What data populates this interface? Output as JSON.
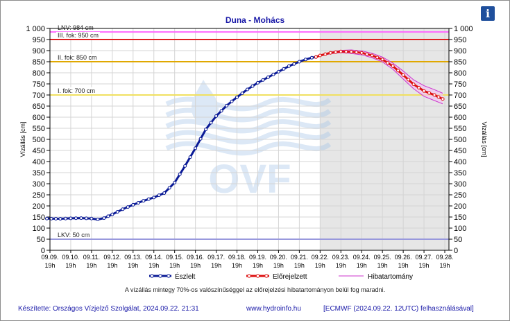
{
  "header": {
    "info_label": "i"
  },
  "chart_data": {
    "type": "line",
    "title": "Duna - Mohács",
    "ylabel": "Vízállás [cm]",
    "ylabel_right": "Vízállás [cm]",
    "xlabel": "",
    "ylim": [
      0,
      1000
    ],
    "yticks": [
      "0",
      "50",
      "100",
      "150",
      "200",
      "250",
      "300",
      "350",
      "400",
      "450",
      "500",
      "550",
      "600",
      "650",
      "700",
      "750",
      "800",
      "850",
      "900",
      "950",
      "1 000"
    ],
    "xlim": [
      0,
      19.2
    ],
    "forecast_start": 13,
    "x_labels": [
      {
        "day": "09.09.",
        "time": "19h",
        "x": 0
      },
      {
        "day": "09.10.",
        "time": "19h",
        "x": 1
      },
      {
        "day": "09.11.",
        "time": "19h",
        "x": 2
      },
      {
        "day": "09.12.",
        "time": "19h",
        "x": 3
      },
      {
        "day": "09.13.",
        "time": "19h",
        "x": 4
      },
      {
        "day": "09.14.",
        "time": "19h",
        "x": 5
      },
      {
        "day": "09.15.",
        "time": "19h",
        "x": 6
      },
      {
        "day": "09.16.",
        "time": "19h",
        "x": 7
      },
      {
        "day": "09.17.",
        "time": "19h",
        "x": 8
      },
      {
        "day": "09.18.",
        "time": "19h",
        "x": 9
      },
      {
        "day": "09.19.",
        "time": "19h",
        "x": 10
      },
      {
        "day": "09.20.",
        "time": "19h",
        "x": 11
      },
      {
        "day": "09.21.",
        "time": "19h",
        "x": 12
      },
      {
        "day": "09.22.",
        "time": "19h",
        "x": 13
      },
      {
        "day": "09.23.",
        "time": "19h",
        "x": 14
      },
      {
        "day": "09.24.",
        "time": "19h",
        "x": 15
      },
      {
        "day": "09.25.",
        "time": "19h",
        "x": 16
      },
      {
        "day": "09.26.",
        "time": "19h",
        "x": 17
      },
      {
        "day": "09.27.",
        "time": "19h",
        "x": 18
      },
      {
        "day": "09.28.",
        "time": "19h",
        "x": 19
      }
    ],
    "thresholds": [
      {
        "label": "LNV: 984 cm",
        "value": 984,
        "color": "#ff66ff"
      },
      {
        "label": "III. fok: 950 cm",
        "value": 950,
        "color": "#dd2020"
      },
      {
        "label": "II. fok: 850 cm",
        "value": 850,
        "color": "#e0a800"
      },
      {
        "label": "I. fok: 700 cm",
        "value": 700,
        "color": "#f0e060"
      },
      {
        "label": "LKV: 50 cm",
        "value": 50,
        "color": "#9999dd"
      }
    ],
    "series": [
      {
        "name": "Észlelt",
        "color": "#0a1a96",
        "points": [
          [
            -0.15,
            143
          ],
          [
            0.5,
            142
          ],
          [
            1,
            144
          ],
          [
            1.5,
            145
          ],
          [
            2,
            143
          ],
          [
            2.3,
            139
          ],
          [
            2.6,
            145
          ],
          [
            3,
            162
          ],
          [
            3.5,
            185
          ],
          [
            4,
            205
          ],
          [
            4.5,
            223
          ],
          [
            5,
            238
          ],
          [
            5.5,
            258
          ],
          [
            6,
            305
          ],
          [
            6.5,
            380
          ],
          [
            7,
            460
          ],
          [
            7.5,
            545
          ],
          [
            8,
            605
          ],
          [
            8.5,
            652
          ],
          [
            9,
            690
          ],
          [
            9.5,
            725
          ],
          [
            10,
            755
          ],
          [
            10.5,
            780
          ],
          [
            11,
            805
          ],
          [
            11.5,
            830
          ],
          [
            12,
            850
          ],
          [
            12.3,
            860
          ],
          [
            12.6,
            868
          ],
          [
            12.8,
            871
          ]
        ]
      },
      {
        "name": "Előrejelzett",
        "color": "#dd1010",
        "points": [
          [
            12.8,
            871
          ],
          [
            13,
            878
          ],
          [
            13.5,
            890
          ],
          [
            14,
            896
          ],
          [
            14.5,
            895
          ],
          [
            15,
            890
          ],
          [
            15.5,
            878
          ],
          [
            16,
            860
          ],
          [
            16.5,
            830
          ],
          [
            17,
            790
          ],
          [
            17.5,
            748
          ],
          [
            18,
            718
          ],
          [
            18.5,
            700
          ],
          [
            18.9,
            682
          ]
        ]
      },
      {
        "name": "Hibatartomány",
        "color": "#cc33cc",
        "upper": [
          [
            12.8,
            873
          ],
          [
            13,
            880
          ],
          [
            13.5,
            893
          ],
          [
            14,
            901
          ],
          [
            14.5,
            903
          ],
          [
            15,
            899
          ],
          [
            15.5,
            888
          ],
          [
            16,
            871
          ],
          [
            16.5,
            844
          ],
          [
            17,
            808
          ],
          [
            17.5,
            768
          ],
          [
            18,
            742
          ],
          [
            18.5,
            724
          ],
          [
            18.9,
            708
          ]
        ],
        "lower": [
          [
            12.8,
            869
          ],
          [
            13,
            875
          ],
          [
            13.5,
            886
          ],
          [
            14,
            891
          ],
          [
            14.5,
            887
          ],
          [
            15,
            881
          ],
          [
            15.5,
            868
          ],
          [
            16,
            849
          ],
          [
            16.5,
            816
          ],
          [
            17,
            772
          ],
          [
            17.5,
            728
          ],
          [
            18,
            694
          ],
          [
            18.5,
            675
          ],
          [
            18.9,
            660
          ]
        ]
      }
    ],
    "legend_position": "bottom"
  },
  "note": "A vízállás mintegy 70%-os valószínűséggel az előrejelzési hibatartományon belül fog maradni.",
  "footer": {
    "author": "Készítette: Országos Vízjelző Szolgálat, 2024.09.22. 21:31",
    "website": "www.hydroinfo.hu",
    "model": "[ECMWF (2024.09.22. 12UTC) felhasználásával]"
  },
  "watermark_text": "OVF"
}
